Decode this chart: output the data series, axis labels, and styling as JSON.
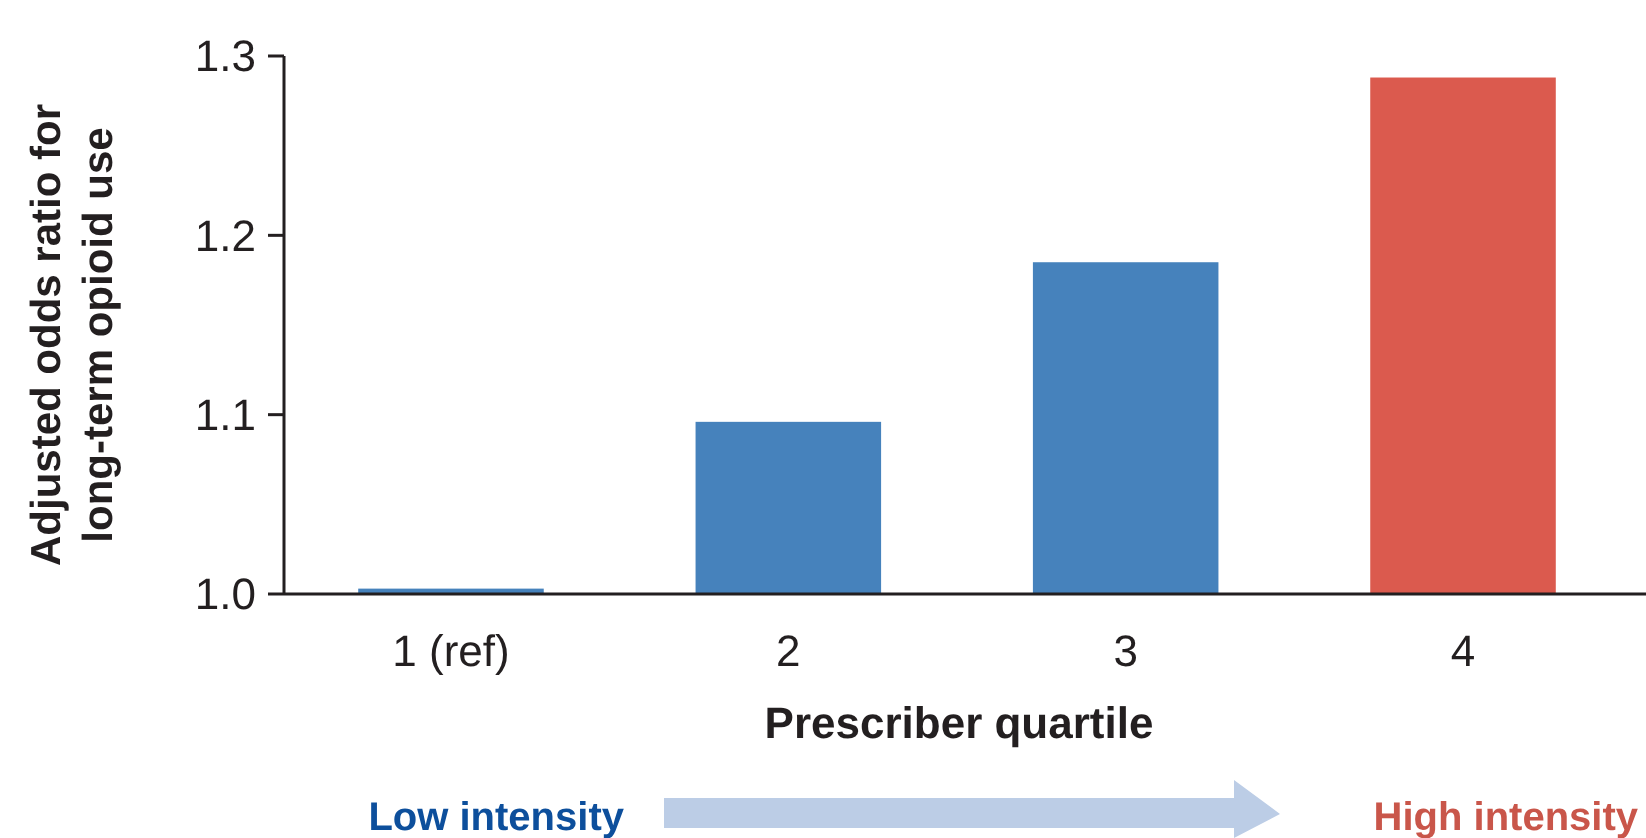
{
  "chart_data": {
    "type": "bar",
    "xlabel": "Prescriber quartile",
    "ylabel": "Adjusted odds ratio for long-term opioid use",
    "categories": [
      "1 (ref)",
      "2",
      "3",
      "4"
    ],
    "values": [
      1.003,
      1.096,
      1.185,
      1.288
    ],
    "colors": [
      "#4682bc",
      "#4682bc",
      "#4682bc",
      "#db5a4e"
    ],
    "ylim": [
      1.0,
      1.3
    ],
    "yticks": [
      {
        "value": 1.0,
        "label": "1.0"
      },
      {
        "value": 1.1,
        "label": "1.1"
      },
      {
        "value": 1.2,
        "label": "1.2"
      },
      {
        "value": 1.3,
        "label": "1.3"
      }
    ],
    "grid": false,
    "annotations": [
      "Low intensity",
      "High intensity"
    ]
  }
}
